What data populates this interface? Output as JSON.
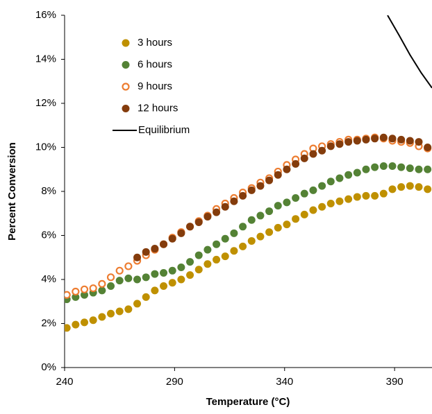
{
  "chart_data": {
    "type": "scatter",
    "xlabel": "Temperature (°C)",
    "ylabel": "Percent Conversion",
    "xlim": [
      240,
      407
    ],
    "xticks": [
      240,
      290,
      340,
      390
    ],
    "ylim": [
      0,
      16
    ],
    "yticks": [
      {
        "value": 0,
        "label": "0%"
      },
      {
        "value": 2,
        "label": "2%"
      },
      {
        "value": 4,
        "label": "4%"
      },
      {
        "value": 6,
        "label": "6%"
      },
      {
        "value": 8,
        "label": "8%"
      },
      {
        "value": 10,
        "label": "10%"
      },
      {
        "value": 12,
        "label": "12%"
      },
      {
        "value": 14,
        "label": "14%"
      },
      {
        "value": 16,
        "label": "16%"
      }
    ],
    "grid": false,
    "legend": "upper left",
    "x": [
      241,
      245,
      249,
      253,
      257,
      261,
      265,
      269,
      273,
      277,
      281,
      285,
      289,
      293,
      297,
      301,
      305,
      309,
      313,
      317,
      321,
      325,
      329,
      333,
      337,
      341,
      345,
      349,
      353,
      357,
      361,
      365,
      369,
      373,
      377,
      381,
      385,
      389,
      393,
      397,
      401,
      405
    ],
    "series": [
      {
        "name": "3 hours",
        "color": "#bf9000",
        "marker": "filled",
        "values": [
          1.8,
          1.95,
          2.05,
          2.15,
          2.3,
          2.45,
          2.55,
          2.65,
          2.9,
          3.2,
          3.5,
          3.7,
          3.85,
          4.0,
          4.2,
          4.45,
          4.7,
          4.9,
          5.05,
          5.3,
          5.5,
          5.75,
          5.95,
          6.15,
          6.35,
          6.5,
          6.75,
          6.95,
          7.15,
          7.3,
          7.45,
          7.55,
          7.65,
          7.75,
          7.8,
          7.8,
          7.9,
          8.1,
          8.2,
          8.25,
          8.2,
          8.1
        ]
      },
      {
        "name": "6 hours",
        "color": "#548235",
        "marker": "filled",
        "values": [
          3.1,
          3.2,
          3.3,
          3.4,
          3.5,
          3.7,
          3.95,
          4.05,
          4.0,
          4.1,
          4.25,
          4.3,
          4.4,
          4.55,
          4.8,
          5.1,
          5.35,
          5.6,
          5.85,
          6.1,
          6.4,
          6.7,
          6.9,
          7.1,
          7.35,
          7.5,
          7.7,
          7.9,
          8.05,
          8.25,
          8.45,
          8.6,
          8.75,
          8.85,
          9.0,
          9.1,
          9.15,
          9.15,
          9.1,
          9.05,
          9.0,
          9.0
        ]
      },
      {
        "name": "9 hours",
        "color": "#ed7d31",
        "marker": "open",
        "values": [
          3.3,
          3.45,
          3.55,
          3.6,
          3.8,
          4.1,
          4.4,
          4.6,
          4.85,
          5.1,
          5.35,
          5.6,
          5.9,
          6.15,
          6.4,
          6.65,
          6.9,
          7.2,
          7.45,
          7.7,
          7.95,
          8.15,
          8.4,
          8.6,
          8.9,
          9.2,
          9.45,
          9.7,
          9.95,
          10.05,
          10.15,
          10.25,
          10.35,
          10.35,
          10.4,
          10.45,
          10.4,
          10.3,
          10.25,
          10.2,
          10.05,
          9.95
        ]
      },
      {
        "name": "12 hours",
        "color": "#843c0c",
        "marker": "filled",
        "values": [
          null,
          null,
          null,
          null,
          null,
          null,
          null,
          null,
          5.0,
          5.25,
          5.4,
          5.6,
          5.85,
          6.1,
          6.4,
          6.6,
          6.85,
          7.05,
          7.3,
          7.55,
          7.8,
          8.05,
          8.25,
          8.5,
          8.75,
          9.0,
          9.25,
          9.5,
          9.7,
          9.85,
          10.05,
          10.15,
          10.25,
          10.3,
          10.35,
          10.4,
          10.45,
          10.4,
          10.35,
          10.3,
          10.25,
          10.0
        ]
      },
      {
        "name": "Equilibrium",
        "color": "#000000",
        "marker": "line",
        "x": [
          386.8,
          392,
          397,
          402,
          407
        ],
        "values": [
          16,
          15.1,
          14.2,
          13.4,
          12.7
        ]
      }
    ]
  }
}
